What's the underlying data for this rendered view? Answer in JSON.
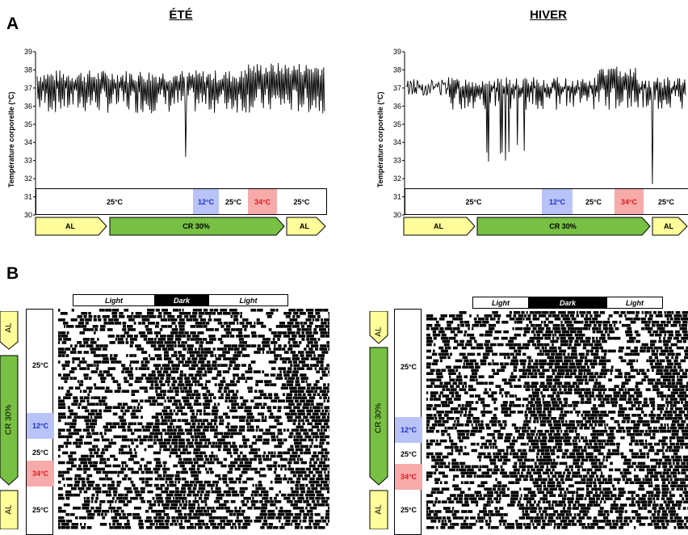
{
  "panel_a_label": "A",
  "panel_b_label": "B",
  "colors": {
    "cold": "#b9c3f7",
    "hot": "#f7aaaa",
    "cold_text": "#1e2fcf",
    "hot_text": "#e11b1b",
    "al": "#fffe9a",
    "cr": "#77c043"
  },
  "chart_data": [
    {
      "type": "line",
      "title": "ÉTÉ",
      "ylabel": "Température corporelle (°C)",
      "ylim": [
        30,
        39
      ],
      "yticks": [
        30,
        31,
        32,
        33,
        34,
        35,
        36,
        37,
        38,
        39
      ],
      "temperature_segments": [
        "25°C",
        "12°C",
        "25°C",
        "34°C",
        "25°C"
      ],
      "diet_segments": [
        "AL",
        "CR 30%",
        "AL"
      ]
    },
    {
      "type": "line",
      "title": "HIVER",
      "ylabel": "Température corporelle (°C)",
      "ylim": [
        30,
        39
      ],
      "yticks": [
        30,
        31,
        32,
        33,
        34,
        35,
        36,
        37,
        38,
        39
      ],
      "temperature_segments": [
        "25°C",
        "12°C",
        "25°C",
        "34°C",
        "25°C"
      ],
      "diet_segments": [
        "AL",
        "CR 30%",
        "AL"
      ]
    }
  ],
  "actograms": [
    {
      "light_bar": [
        "Light",
        "Dark",
        "Light"
      ],
      "diet_labels": [
        "AL",
        "CR 30%",
        "AL"
      ],
      "temperature_labels": [
        "25°C",
        "12°C",
        "25°C",
        "34°C",
        "25°C"
      ]
    },
    {
      "light_bar": [
        "Light",
        "Dark",
        "Light"
      ],
      "diet_labels": [
        "AL",
        "CR 30%",
        "AL"
      ],
      "temperature_labels": [
        "25°C",
        "12°C",
        "25°C",
        "34°C",
        "25°C"
      ]
    }
  ]
}
